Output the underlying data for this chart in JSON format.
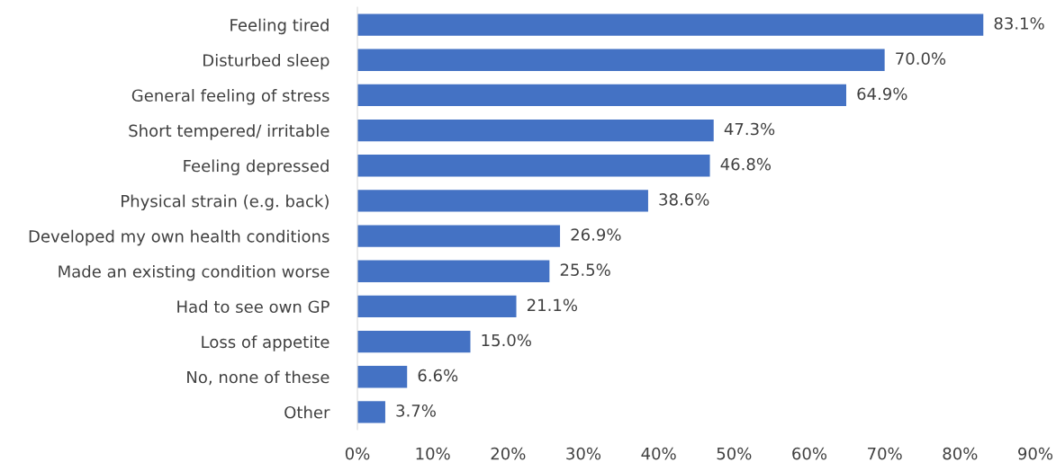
{
  "chart_data": {
    "type": "bar",
    "orientation": "horizontal",
    "categories": [
      "Feeling tired",
      "Disturbed sleep",
      "General feeling of stress",
      "Short tempered/ irritable",
      "Feeling depressed",
      "Physical strain (e.g. back)",
      "Developed my own health conditions",
      "Made an existing condition worse",
      "Had to see own GP",
      "Loss of appetite",
      "No, none of these",
      "Other"
    ],
    "values": [
      83.1,
      70.0,
      64.9,
      47.3,
      46.8,
      38.6,
      26.9,
      25.5,
      21.1,
      15.0,
      6.6,
      3.7
    ],
    "value_labels": [
      "83.1%",
      "70.0%",
      "64.9%",
      "47.3%",
      "46.8%",
      "38.6%",
      "26.9%",
      "25.5%",
      "21.1%",
      "15.0%",
      "6.6%",
      "3.7%"
    ],
    "color": "#4472c4",
    "xlim": [
      0,
      90
    ],
    "xticks": [
      {
        "value": 0,
        "label": "0%"
      },
      {
        "value": 10,
        "label": "10%"
      },
      {
        "value": 20,
        "label": "20%"
      },
      {
        "value": 30,
        "label": "30%"
      },
      {
        "value": 40,
        "label": "40%"
      },
      {
        "value": 50,
        "label": "50%"
      },
      {
        "value": 60,
        "label": "60%"
      },
      {
        "value": 70,
        "label": "70%"
      },
      {
        "value": 80,
        "label": "80%"
      },
      {
        "value": 90,
        "label": "90%"
      }
    ],
    "grid": false,
    "legend": false
  }
}
